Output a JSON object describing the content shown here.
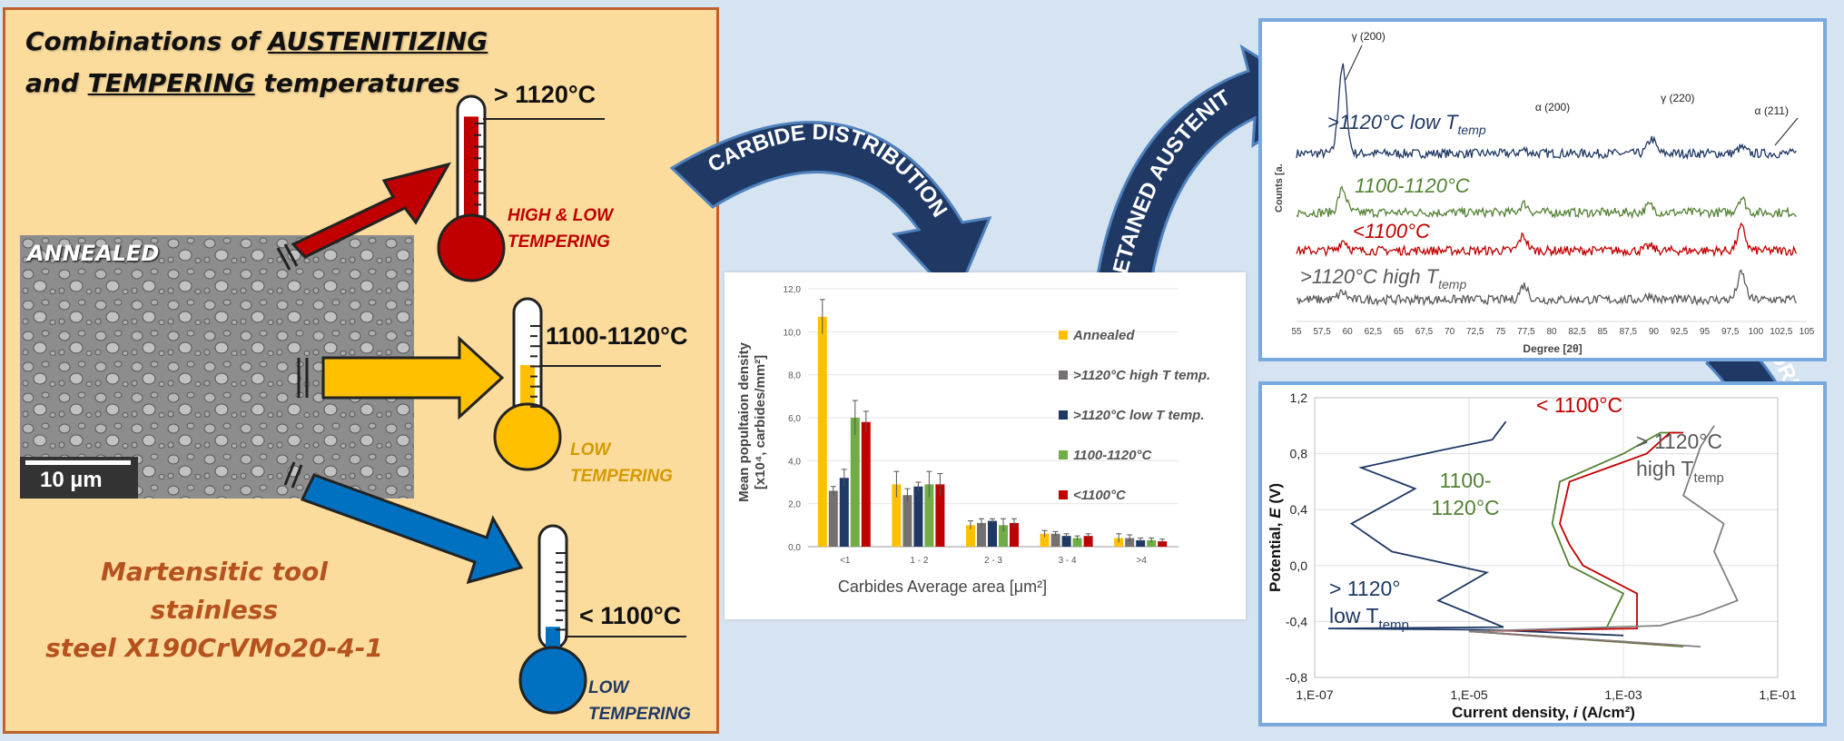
{
  "left": {
    "title_line1_pre": "Combinations of ",
    "title_line1_emph": "AUSTENITIZING",
    "title_line2_pre": "and ",
    "title_line2_emph": "TEMPERING",
    "title_line2_post": " temperatures",
    "micrograph_label": "ANNEALED",
    "scale_bar": "10 µm",
    "steel_line1": "Martensitic tool stainless",
    "steel_line2": "steel X190CrVMo20-4-1",
    "thermometers": [
      {
        "label": "> 1120°C",
        "note": "HIGH & LOW\nTEMPERING",
        "color": "#c00000",
        "fill_level": 0.92
      },
      {
        "label": "1100-1120°C",
        "note": "LOW\nTEMPERING",
        "color": "#ffc000",
        "fill_level": 0.55
      },
      {
        "label": "< 1100°C",
        "note": "LOW\nTEMPERING",
        "color": "#0070c0",
        "fill_level": 0.25
      }
    ]
  },
  "arrows": {
    "carbide": "CARBIDE DISTRIBUTION",
    "austenite": "RETAINED AUSTENITE",
    "corrosion": "CORROSION BEHAVIOUR"
  },
  "chart_data": [
    {
      "type": "bar",
      "title": "",
      "xlabel": "Carbides Average area [μm²]",
      "ylabel_line1": "Mean popultaion density",
      "ylabel_line2": "[x10⁴, carbides/mm²]",
      "ylim": [
        0,
        12
      ],
      "yticks": [
        "0,0",
        "2,0",
        "4,0",
        "6,0",
        "8,0",
        "10,0",
        "12,0"
      ],
      "categories": [
        "<1",
        "1 - 2",
        "2 - 3",
        "3 - 4",
        ">4"
      ],
      "legend_placement": "right",
      "series": [
        {
          "name": "Annealed",
          "color": "#ffc000",
          "values": [
            10.7,
            2.9,
            1.0,
            0.6,
            0.4
          ],
          "errors": [
            0.8,
            0.6,
            0.2,
            0.15,
            0.2
          ]
        },
        {
          "name": ">1120°C high T temp.",
          "color": "#767171",
          "values": [
            2.6,
            2.4,
            1.1,
            0.6,
            0.4
          ],
          "errors": [
            0.2,
            0.3,
            0.2,
            0.1,
            0.15
          ]
        },
        {
          "name": ">1120°C low T temp.",
          "color": "#1f3864",
          "values": [
            3.2,
            2.8,
            1.2,
            0.5,
            0.3
          ],
          "errors": [
            0.4,
            0.2,
            0.1,
            0.1,
            0.1
          ]
        },
        {
          "name": "1100-1120°C",
          "color": "#70ad47",
          "values": [
            6.0,
            2.9,
            1.0,
            0.4,
            0.3
          ],
          "errors": [
            0.8,
            0.6,
            0.3,
            0.1,
            0.1
          ]
        },
        {
          "name": "<1100°C",
          "color": "#c00000",
          "values": [
            5.8,
            2.9,
            1.1,
            0.5,
            0.25
          ],
          "errors": [
            0.5,
            0.5,
            0.2,
            0.1,
            0.1
          ]
        }
      ]
    },
    {
      "type": "line",
      "title": "",
      "xlabel": "Degree [2θ]",
      "ylabel": "Counts [a.",
      "xlim": [
        55,
        105
      ],
      "xticks": [
        "55",
        "57,5",
        "60",
        "62,5",
        "65",
        "67,5",
        "70",
        "72,5",
        "75",
        "77,5",
        "80",
        "82,5",
        "85",
        "87,5",
        "90",
        "92,5",
        "95",
        "97,5",
        "100",
        "102,5",
        "105"
      ],
      "peak_labels": [
        {
          "text": "γ (200)",
          "x": 59.5
        },
        {
          "text": "α (200)",
          "x": 77.5
        },
        {
          "text": "γ (220)",
          "x": 89.8
        },
        {
          "text": "α (211)",
          "x": 99.0
        }
      ],
      "series": [
        {
          "name": ">1120°C low T",
          "subscript": "temp",
          "color": "#1f3864",
          "peaks": [
            [
              59.5,
              6.0
            ],
            [
              77.3,
              0.25
            ],
            [
              89.8,
              1.0
            ],
            [
              98.6,
              0.4
            ]
          ]
        },
        {
          "name": "1100-1120°C",
          "subscript": "",
          "color": "#548235",
          "peaks": [
            [
              59.5,
              1.6
            ],
            [
              77.3,
              0.6
            ],
            [
              89.6,
              0.5
            ],
            [
              98.6,
              1.0
            ]
          ]
        },
        {
          "name": "<1100°C",
          "subscript": "",
          "color": "#c00000",
          "peaks": [
            [
              59.6,
              0.7
            ],
            [
              77.2,
              1.0
            ],
            [
              89.6,
              0.3
            ],
            [
              98.6,
              1.6
            ]
          ]
        },
        {
          "name": ">1120°C high T",
          "subscript": "temp",
          "color": "#595959",
          "peaks": [
            [
              59.5,
              0.5
            ],
            [
              77.3,
              1.0
            ],
            [
              89.6,
              0.3
            ],
            [
              98.6,
              1.8
            ]
          ]
        }
      ]
    },
    {
      "type": "line",
      "title": "",
      "xlabel_pre": "Current density, ",
      "xlabel_var": "i",
      "xlabel_post": " (A/cm²)",
      "ylabel_pre": "Potential, ",
      "ylabel_var": "E",
      "ylabel_post": " (V)",
      "x_scale": "log",
      "xlim": [
        1e-07,
        0.1
      ],
      "xticks": [
        "1,E-07",
        "1,E-05",
        "1,E-03",
        "1,E-01"
      ],
      "ylim": [
        -0.8,
        1.2
      ],
      "yticks": [
        "-0,8",
        "-0,4",
        "0,0",
        "0,4",
        "0,8",
        "1,2"
      ],
      "series": [
        {
          "name": "> 1120°\nlow T",
          "subscript": "temp",
          "color": "#1f3864",
          "points": [
            [
              0.001,
              -0.5
            ],
            [
              2e-05,
              -0.46
            ],
            [
              1.5e-07,
              -0.45
            ],
            [
              2.8e-05,
              -0.44
            ],
            [
              4e-06,
              -0.25
            ],
            [
              1.7e-05,
              -0.05
            ],
            [
              1e-06,
              0.1
            ],
            [
              3e-07,
              0.3
            ],
            [
              2e-06,
              0.55
            ],
            [
              4e-07,
              0.7
            ],
            [
              4e-06,
              0.82
            ],
            [
              2e-05,
              0.9
            ],
            [
              3e-05,
              1.03
            ]
          ]
        },
        {
          "name": "1100-\n1120°C",
          "subscript": "",
          "color": "#548235",
          "points": [
            [
              0.006,
              -0.58
            ],
            [
              1e-05,
              -0.47
            ],
            [
              0.0006,
              -0.45
            ],
            [
              0.001,
              -0.2
            ],
            [
              0.0002,
              0.0
            ],
            [
              0.00012,
              0.3
            ],
            [
              0.00015,
              0.6
            ],
            [
              0.001,
              0.8
            ],
            [
              0.003,
              0.95
            ],
            [
              0.005,
              0.95
            ]
          ]
        },
        {
          "name": "< 1100°C",
          "subscript": "",
          "color": "#c00000",
          "points": [
            [
              0.005,
              -0.57
            ],
            [
              1e-05,
              -0.47
            ],
            [
              0.0015,
              -0.45
            ],
            [
              0.0015,
              -0.2
            ],
            [
              0.0003,
              0.0
            ],
            [
              0.0002,
              0.15
            ],
            [
              0.00015,
              0.3
            ],
            [
              0.0002,
              0.6
            ],
            [
              0.002,
              0.8
            ],
            [
              0.004,
              0.95
            ],
            [
              0.006,
              0.95
            ]
          ]
        },
        {
          "name": "> 1120°C\nhigh T",
          "subscript": "temp",
          "color": "#808080",
          "points": [
            [
              0.01,
              -0.58
            ],
            [
              1e-05,
              -0.47
            ],
            [
              0.003,
              -0.43
            ],
            [
              0.01,
              -0.35
            ],
            [
              0.03,
              -0.25
            ],
            [
              0.015,
              0.1
            ],
            [
              0.02,
              0.3
            ],
            [
              0.006,
              0.5
            ],
            [
              0.01,
              0.85
            ],
            [
              0.015,
              1.0
            ]
          ]
        }
      ]
    }
  ]
}
